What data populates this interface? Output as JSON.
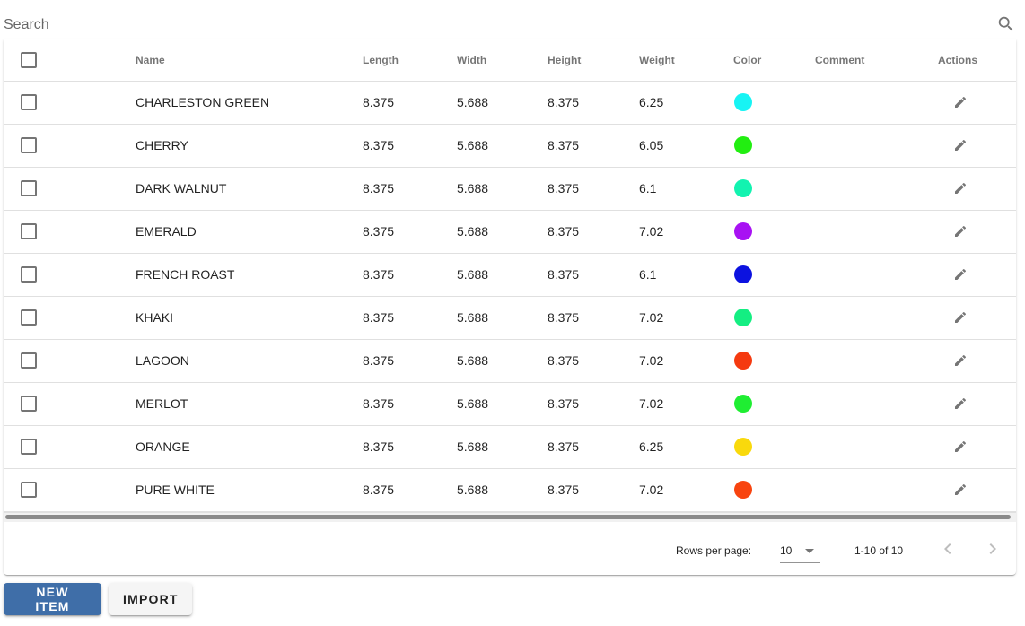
{
  "search": {
    "placeholder": "Search",
    "value": ""
  },
  "table": {
    "columns": {
      "name": "Name",
      "length": "Length",
      "width": "Width",
      "height": "Height",
      "weight": "Weight",
      "color": "Color",
      "comment": "Comment",
      "actions": "Actions"
    },
    "rows": [
      {
        "name": "CHARLESTON GREEN",
        "length": "8.375",
        "width": "5.688",
        "height": "8.375",
        "weight": "6.25",
        "color": "#17f4f4",
        "comment": ""
      },
      {
        "name": "CHERRY",
        "length": "8.375",
        "width": "5.688",
        "height": "8.375",
        "weight": "6.05",
        "color": "#22ee11",
        "comment": ""
      },
      {
        "name": "DARK WALNUT",
        "length": "8.375",
        "width": "5.688",
        "height": "8.375",
        "weight": "6.1",
        "color": "#12f3b0",
        "comment": ""
      },
      {
        "name": "EMERALD",
        "length": "8.375",
        "width": "5.688",
        "height": "8.375",
        "weight": "7.02",
        "color": "#a812f3",
        "comment": ""
      },
      {
        "name": "FRENCH ROAST",
        "length": "8.375",
        "width": "5.688",
        "height": "8.375",
        "weight": "6.1",
        "color": "#0c12e0",
        "comment": ""
      },
      {
        "name": "KHAKI",
        "length": "8.375",
        "width": "5.688",
        "height": "8.375",
        "weight": "7.02",
        "color": "#14ee82",
        "comment": ""
      },
      {
        "name": "LAGOON",
        "length": "8.375",
        "width": "5.688",
        "height": "8.375",
        "weight": "7.02",
        "color": "#f53a10",
        "comment": ""
      },
      {
        "name": "MERLOT",
        "length": "8.375",
        "width": "5.688",
        "height": "8.375",
        "weight": "7.02",
        "color": "#1fee32",
        "comment": ""
      },
      {
        "name": "ORANGE",
        "length": "8.375",
        "width": "5.688",
        "height": "8.375",
        "weight": "6.25",
        "color": "#f9d90c",
        "comment": ""
      },
      {
        "name": "PURE WHITE",
        "length": "8.375",
        "width": "5.688",
        "height": "8.375",
        "weight": "7.02",
        "color": "#f8440f",
        "comment": ""
      }
    ]
  },
  "pagination": {
    "rows_per_page_label": "Rows per page:",
    "rows_per_page_value": "10",
    "range_text": "1-10 of 10"
  },
  "buttons": {
    "new_item": "NEW ITEM",
    "import": "IMPORT"
  },
  "icons": {
    "search": "search-icon",
    "edit": "pencil-icon",
    "prev": "chevron-left-icon",
    "next": "chevron-right-icon",
    "dropdown": "caret-down-icon"
  },
  "colors": {
    "primary": "#3f6ea8"
  }
}
